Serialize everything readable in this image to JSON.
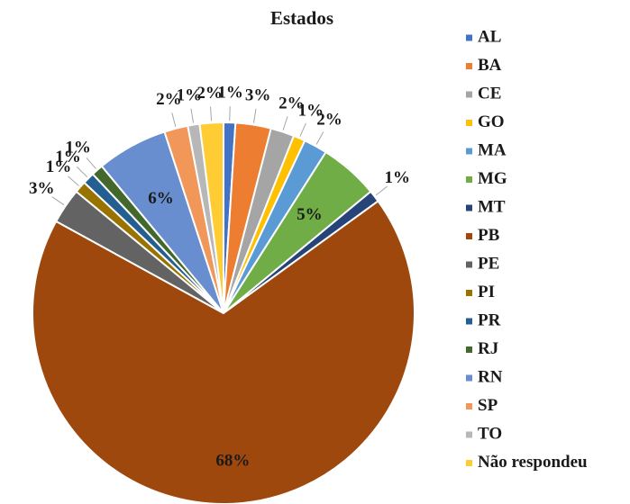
{
  "chart_data": {
    "type": "pie",
    "title": "Estados",
    "categories": [
      "AL",
      "BA",
      "CE",
      "GO",
      "MA",
      "MG",
      "MT",
      "PB",
      "PE",
      "PI",
      "PR",
      "RJ",
      "RN",
      "SP",
      "TO",
      "Não respondeu"
    ],
    "values": [
      1,
      3,
      2,
      1,
      2,
      5,
      1,
      68,
      3,
      1,
      1,
      1,
      6,
      2,
      1,
      2
    ],
    "value_labels": [
      "1%",
      "3%",
      "2%",
      "1%",
      "2%",
      "5%",
      "1%",
      "68%",
      "3%",
      "1%",
      "1%",
      "1%",
      "6%",
      "2%",
      "1%",
      "2%"
    ],
    "colors": [
      "#4472c4",
      "#ed7d31",
      "#a5a5a5",
      "#ffc000",
      "#5b9bd5",
      "#70ad47",
      "#264478",
      "#9e480e",
      "#636363",
      "#997300",
      "#255e91",
      "#43682b",
      "#698ed0",
      "#f1975a",
      "#b7b7b7",
      "#ffcd33"
    ],
    "legend": "right"
  }
}
